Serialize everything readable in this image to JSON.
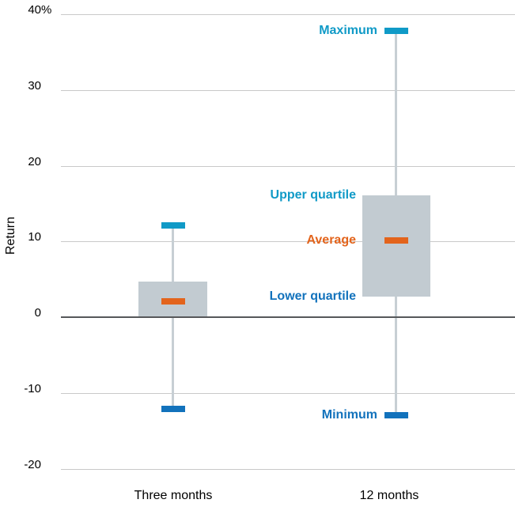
{
  "chart_data": {
    "type": "box",
    "title": "",
    "xlabel": "",
    "ylabel": "Return",
    "grid": true,
    "legend_position": "inline-annotations",
    "y_axis": {
      "min": -20,
      "max": 40,
      "tick_step": 10,
      "ticks": [
        {
          "value": 40,
          "label": "40",
          "suffix": "%"
        },
        {
          "value": 30,
          "label": "30",
          "suffix": ""
        },
        {
          "value": 20,
          "label": "20",
          "suffix": ""
        },
        {
          "value": 10,
          "label": "10",
          "suffix": ""
        },
        {
          "value": 0,
          "label": "0",
          "suffix": ""
        },
        {
          "value": -10,
          "label": "-10",
          "suffix": ""
        },
        {
          "value": -20,
          "label": "-20",
          "suffix": ""
        }
      ]
    },
    "categories": [
      "Three months",
      "12 months"
    ],
    "series": [
      {
        "category": "Three months",
        "maximum": 12.1,
        "upper_quartile": 4.7,
        "average": 2.1,
        "lower_quartile": 0,
        "minimum": -12.1
      },
      {
        "category": "12 months",
        "maximum": 37.8,
        "upper_quartile": 16.1,
        "average": 10.1,
        "lower_quartile": 2.7,
        "minimum": -12.9
      }
    ],
    "annotations": [
      {
        "text": "Maximum",
        "target": "maximum",
        "series_index": 1,
        "color": "#109AC7"
      },
      {
        "text": "Upper quartile",
        "target": "upper_quartile",
        "series_index": 1,
        "color": "#109AC7"
      },
      {
        "text": "Average",
        "target": "average",
        "series_index": 1,
        "color": "#E3641C"
      },
      {
        "text": "Lower quartile",
        "target": "lower_quartile",
        "series_index": 1,
        "color": "#1272BC"
      },
      {
        "text": "Minimum",
        "target": "minimum",
        "series_index": 1,
        "color": "#1272BC"
      }
    ],
    "colors": {
      "maximum_cap": "#109AC7",
      "minimum_cap": "#1272BC",
      "average_bar": "#E3641C",
      "box_fill": "#C2CBD1",
      "whisker": "#C7CFD4",
      "gridline": "#C9C9C9",
      "zero_line": "#56585A",
      "text": "#000000"
    }
  }
}
